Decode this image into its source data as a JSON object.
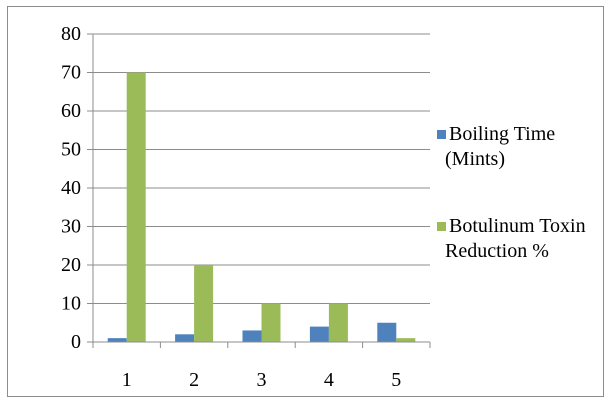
{
  "chart_data": {
    "type": "bar",
    "title": "",
    "xlabel": "",
    "ylabel": "",
    "categories": [
      "1",
      "2",
      "3",
      "4",
      "5"
    ],
    "series": [
      {
        "name": "Boiling Time (Mints)",
        "values": [
          1,
          2,
          3,
          4,
          5
        ],
        "color": "#4f81bd"
      },
      {
        "name": "Botulinum Toxin Reduction %",
        "values": [
          70,
          20,
          10,
          10,
          1
        ],
        "color": "#9bbb59"
      }
    ],
    "ylim": [
      0,
      80
    ],
    "yticks": [
      "0",
      "10",
      "20",
      "30",
      "40",
      "50",
      "60",
      "70",
      "80"
    ],
    "grid": true,
    "legend_position": "right",
    "legend_lines": [
      [
        "Boiling Time",
        "(Mints)"
      ],
      [
        "Botulinum Toxin",
        "Reduction %"
      ]
    ]
  }
}
